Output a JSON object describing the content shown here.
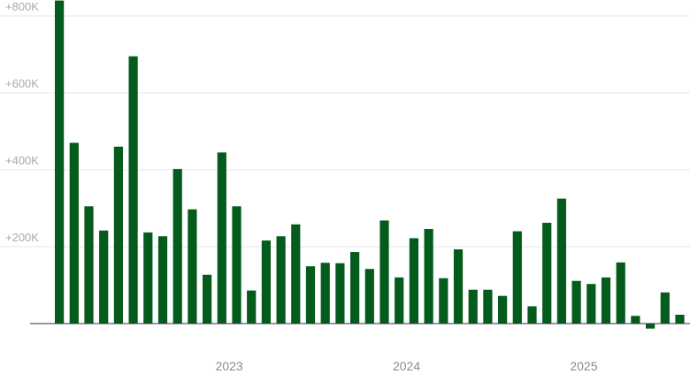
{
  "chart_data": {
    "type": "bar",
    "title": "",
    "xlabel": "",
    "ylabel": "",
    "ylim": [
      -15000,
      845000
    ],
    "yticks": [
      200000,
      400000,
      600000,
      800000
    ],
    "ytick_labels": [
      "+200K",
      "+400K",
      "+600K",
      "+800K"
    ],
    "xticks": [
      {
        "label": "2023",
        "index": 11.5
      },
      {
        "label": "2024",
        "index": 23.5
      },
      {
        "label": "2025",
        "index": 35.5
      }
    ],
    "grid": true,
    "bar_color": "#035b1c",
    "values": [
      840000,
      470000,
      305000,
      242000,
      460000,
      695000,
      237000,
      227000,
      402000,
      297000,
      127000,
      445000,
      305000,
      86000,
      216000,
      227000,
      258000,
      149000,
      158000,
      157000,
      186000,
      142000,
      268000,
      120000,
      222000,
      246000,
      118000,
      193000,
      88000,
      88000,
      72000,
      240000,
      45000,
      262000,
      325000,
      111000,
      103000,
      120000,
      159000,
      20000,
      -13000,
      81000,
      23000
    ]
  }
}
